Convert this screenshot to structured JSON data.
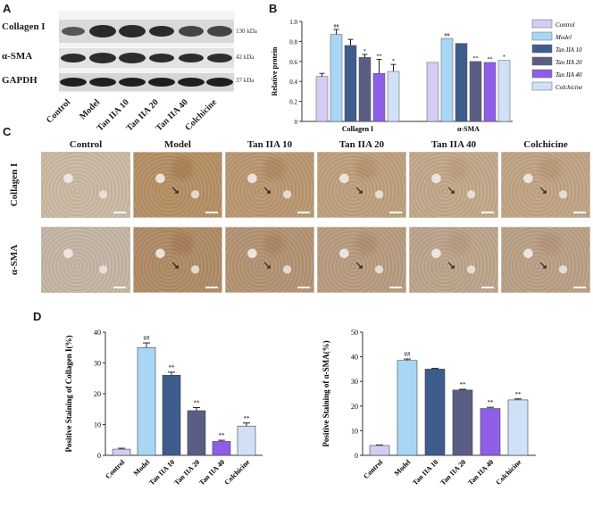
{
  "panels": {
    "a": "A",
    "b": "B",
    "c": "C",
    "d": "D"
  },
  "western_blot": {
    "rows": [
      {
        "label": "Collagen I",
        "kda": "130 kDa"
      },
      {
        "label": "α-SMA",
        "kda": "42 kDa"
      },
      {
        "label": "GAPDH",
        "kda": "37 kDa"
      }
    ],
    "lanes": [
      "Control",
      "Model",
      "Tan IIA 10",
      "Tan IIA 20",
      "Tan IIA 40",
      "Colchicine"
    ]
  },
  "colors": {
    "Control": "#d4ccf2",
    "Model": "#a9d6f5",
    "Tan IIA 10": "#3e5c8c",
    "Tan IIA 20": "#5b5e84",
    "Tan IIA 40": "#8f5ee6",
    "Colchicine": "#cfe0f7"
  },
  "chart_data": [
    {
      "type": "bar",
      "panel": "B",
      "categories": [
        "Collagen I",
        "α-SMA"
      ],
      "ylabel": "Relative protein",
      "ylim": [
        0,
        1.0
      ],
      "yticks": [
        "0",
        "0.2",
        "0.4",
        "0.6",
        "0.8",
        "1.0"
      ],
      "legend_position": "right",
      "series": [
        {
          "name": "Control",
          "values": [
            0.45,
            0.59
          ],
          "err": [
            0.03,
            0.0
          ],
          "sig": [
            "",
            ""
          ]
        },
        {
          "name": "Model",
          "values": [
            0.87,
            0.83
          ],
          "err": [
            0.05,
            0.0
          ],
          "sig": [
            "##",
            "##"
          ]
        },
        {
          "name": "Tan IIA 10",
          "values": [
            0.76,
            0.78
          ],
          "err": [
            0.06,
            0.0
          ],
          "sig": [
            "",
            ""
          ]
        },
        {
          "name": "Tan IIA 20",
          "values": [
            0.64,
            0.6
          ],
          "err": [
            0.03,
            0.0
          ],
          "sig": [
            "*",
            "**"
          ]
        },
        {
          "name": "Tan IIA 40",
          "values": [
            0.48,
            0.59
          ],
          "err": [
            0.14,
            0.0
          ],
          "sig": [
            "**",
            "**"
          ]
        },
        {
          "name": "Colchicine",
          "values": [
            0.5,
            0.61
          ],
          "err": [
            0.07,
            0.0
          ],
          "sig": [
            "*",
            "*"
          ]
        }
      ]
    },
    {
      "type": "bar",
      "panel": "D-left",
      "categories": [
        "Control",
        "Model",
        "Tan IIA 10",
        "Tan IIA 20",
        "Tan IIA 40",
        "Colchicine"
      ],
      "values": [
        2,
        35,
        26,
        14.5,
        4.5,
        9.5
      ],
      "err": [
        0.3,
        1.5,
        1.0,
        1.0,
        0.4,
        1.0
      ],
      "sig": [
        "",
        "##",
        "**",
        "**",
        "**",
        "**"
      ],
      "ylabel": "Positive Staining of Collagen I(%)",
      "ylim": [
        0,
        40
      ],
      "yticks": [
        "0",
        "10",
        "20",
        "30",
        "40"
      ]
    },
    {
      "type": "bar",
      "panel": "D-right",
      "categories": [
        "Control",
        "Model",
        "Tan IIA 10",
        "Tan IIA 20",
        "Tan IIA 40",
        "Colchicine"
      ],
      "values": [
        4,
        38.5,
        35,
        26.5,
        19,
        22.5
      ],
      "err": [
        0.2,
        0.6,
        0.3,
        0.3,
        0.5,
        0.4
      ],
      "sig": [
        "",
        "##",
        "",
        "**",
        "**",
        "**"
      ],
      "ylabel": "Positive Staining of α-SMA(%)",
      "ylim": [
        0,
        50
      ],
      "yticks": [
        "0",
        "10",
        "20",
        "30",
        "40",
        "50"
      ]
    }
  ],
  "histology": {
    "columns": [
      "Control",
      "Model",
      "Tan IIA 10",
      "Tan IIA 20",
      "Tan IIA 40",
      "Colchicine"
    ],
    "rows": [
      "Collagen I",
      "α-SMA"
    ]
  }
}
